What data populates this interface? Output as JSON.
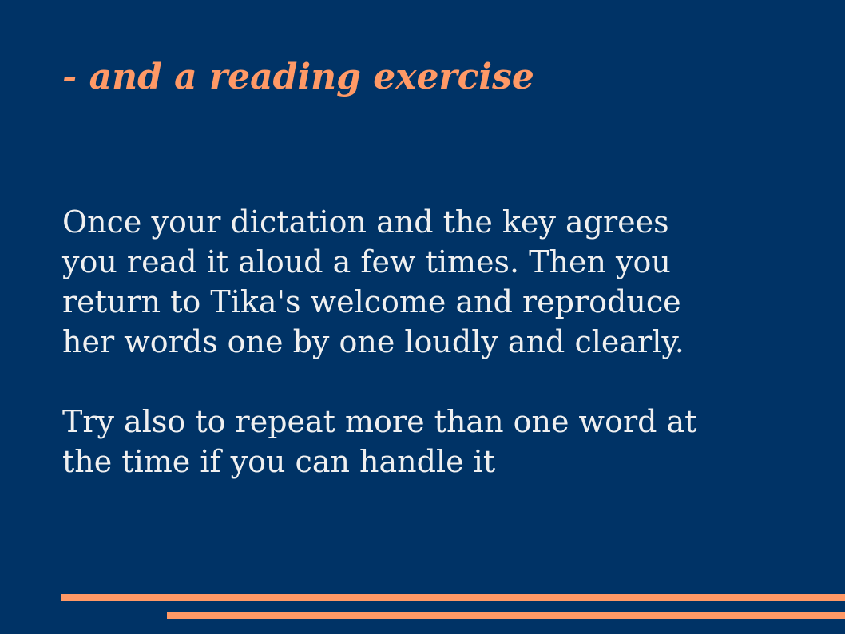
{
  "slide": {
    "title": "- and a reading exercise",
    "paragraphs": [
      {
        "lines": [
          "Once your dictation and the key agrees",
          "you read it aloud a few times. Then you",
          "return to Tika's welcome and reproduce",
          "her words one by one loudly and clearly."
        ]
      },
      {
        "lines": [
          "Try also to repeat more than one word at",
          "the time if you can handle it"
        ]
      }
    ]
  },
  "colors": {
    "background": "#003366",
    "accent": "#ff9966",
    "text": "#f0f0f0"
  }
}
